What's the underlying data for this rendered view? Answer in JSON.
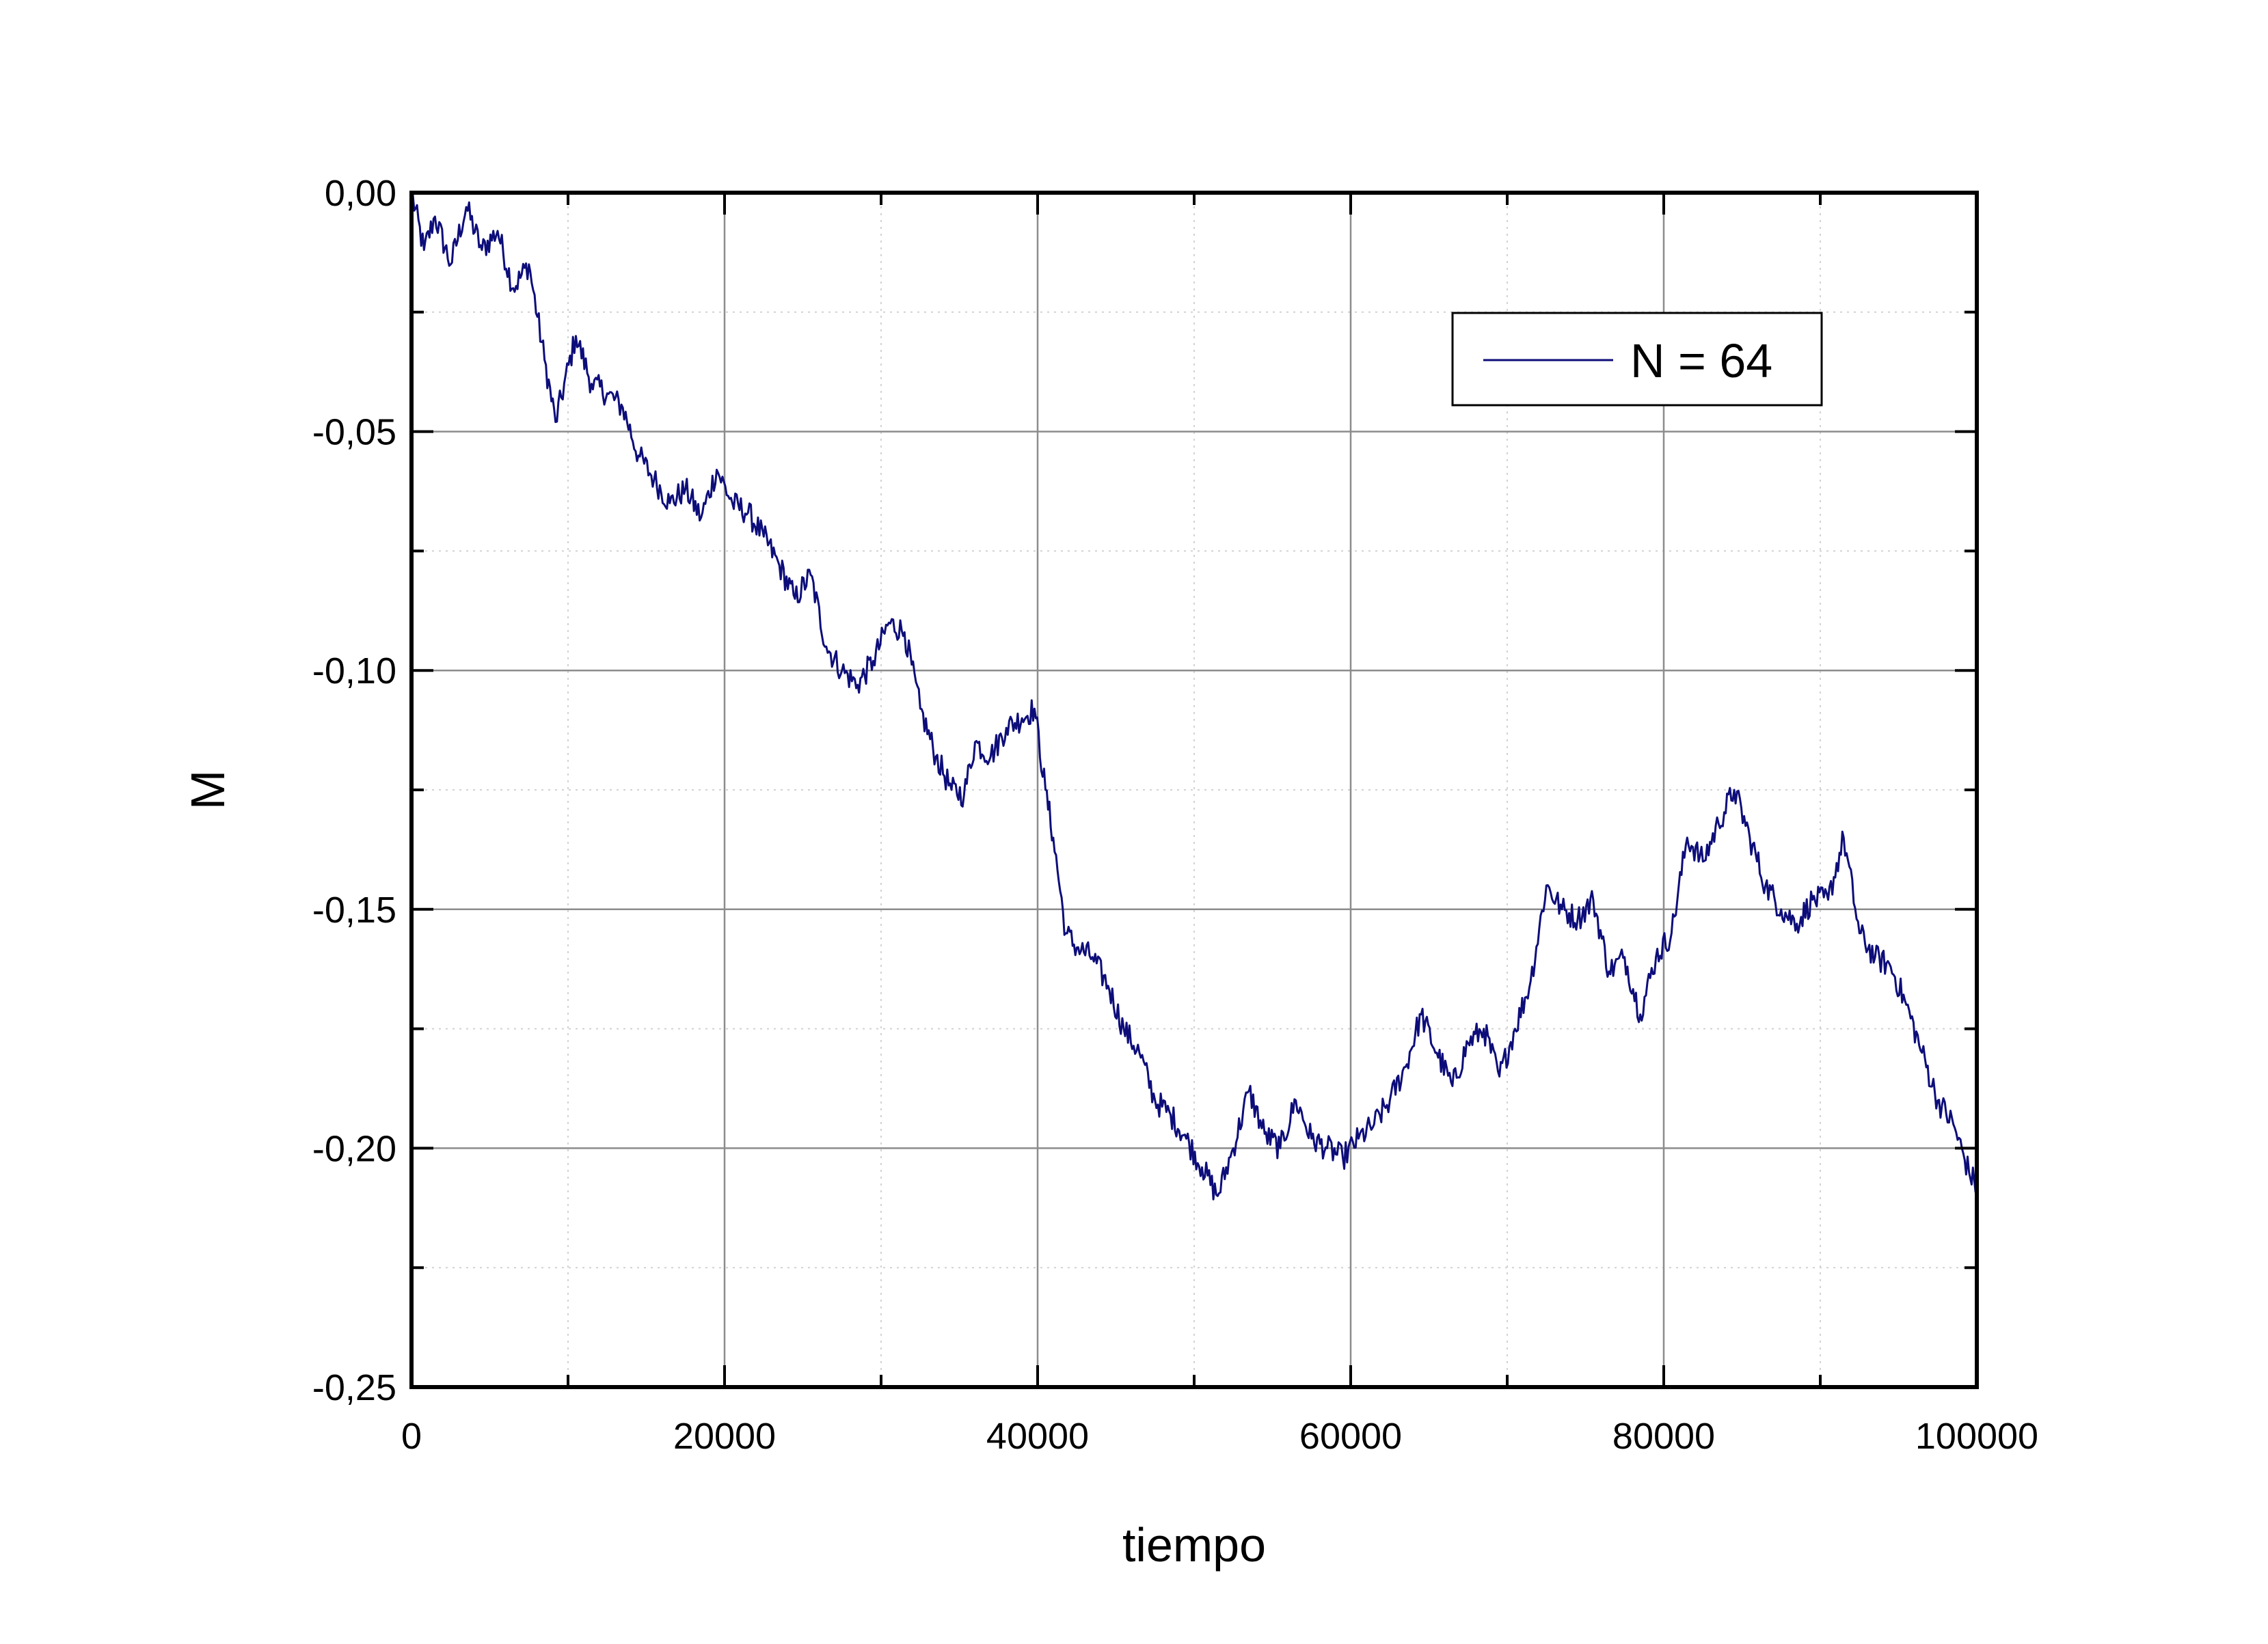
{
  "chart_data": {
    "type": "line",
    "title": "",
    "xlabel": "tiempo",
    "ylabel": "M",
    "xlim": [
      0,
      100000
    ],
    "ylim": [
      -0.25,
      0.0
    ],
    "xticks": [
      0,
      20000,
      40000,
      60000,
      80000,
      100000
    ],
    "xtick_labels": [
      "0",
      "20000",
      "40000",
      "60000",
      "80000",
      "100000"
    ],
    "yticks": [
      0.0,
      -0.05,
      -0.1,
      -0.15,
      -0.2,
      -0.25
    ],
    "ytick_labels": [
      "0,00",
      "-0,05",
      "-0,10",
      "-0,15",
      "-0,20",
      "-0,25"
    ],
    "grid": true,
    "legend_position": "top-right",
    "series": [
      {
        "name": "N = 64",
        "color": "#0d0d7a",
        "x": [
          0,
          800,
          1500,
          2500,
          3500,
          4500,
          5500,
          6500,
          7500,
          8500,
          9200,
          10500,
          11500,
          12500,
          13500,
          14500,
          15500,
          16500,
          17500,
          18500,
          19500,
          20500,
          21500,
          22500,
          23500,
          24500,
          25500,
          26500,
          27500,
          28500,
          29500,
          30500,
          31500,
          32500,
          33500,
          34500,
          35300,
          36000,
          37000,
          38000,
          39000,
          39800,
          40500,
          41000,
          41800,
          42500,
          43500,
          44500,
          45500,
          46500,
          47500,
          48500,
          49500,
          50500,
          51500,
          52500,
          53500,
          54500,
          55500,
          56500,
          57500,
          58500,
          59500,
          60500,
          61500,
          62500,
          63500,
          64500,
          65500,
          66500,
          67500,
          68500,
          69500,
          70500,
          71500,
          72500,
          73500,
          74500,
          75500,
          76500,
          77500,
          78500,
          79500,
          80500,
          81500,
          82500,
          83500,
          84500,
          85500,
          86500,
          87500,
          88500,
          89500,
          90500,
          91500,
          92500,
          93500,
          94500,
          95500,
          96500,
          97500,
          98500,
          99500,
          100000
        ],
        "y": [
          0.0,
          -0.012,
          -0.005,
          -0.015,
          -0.003,
          -0.012,
          -0.008,
          -0.02,
          -0.015,
          -0.035,
          -0.048,
          -0.03,
          -0.04,
          -0.042,
          -0.045,
          -0.055,
          -0.06,
          -0.065,
          -0.062,
          -0.068,
          -0.058,
          -0.065,
          -0.067,
          -0.072,
          -0.078,
          -0.085,
          -0.08,
          -0.095,
          -0.1,
          -0.103,
          -0.098,
          -0.09,
          -0.092,
          -0.108,
          -0.118,
          -0.125,
          -0.126,
          -0.115,
          -0.118,
          -0.112,
          -0.11,
          -0.108,
          -0.125,
          -0.135,
          -0.155,
          -0.158,
          -0.16,
          -0.166,
          -0.175,
          -0.18,
          -0.19,
          -0.193,
          -0.198,
          -0.204,
          -0.21,
          -0.2,
          -0.188,
          -0.197,
          -0.2,
          -0.19,
          -0.198,
          -0.2,
          -0.202,
          -0.198,
          -0.195,
          -0.19,
          -0.183,
          -0.172,
          -0.18,
          -0.187,
          -0.178,
          -0.175,
          -0.185,
          -0.175,
          -0.165,
          -0.145,
          -0.15,
          -0.152,
          -0.148,
          -0.163,
          -0.16,
          -0.172,
          -0.16,
          -0.155,
          -0.135,
          -0.14,
          -0.132,
          -0.125,
          -0.135,
          -0.145,
          -0.15,
          -0.153,
          -0.148,
          -0.148,
          -0.135,
          -0.155,
          -0.16,
          -0.162,
          -0.17,
          -0.18,
          -0.19,
          -0.195,
          -0.205,
          -0.208
        ]
      }
    ]
  }
}
